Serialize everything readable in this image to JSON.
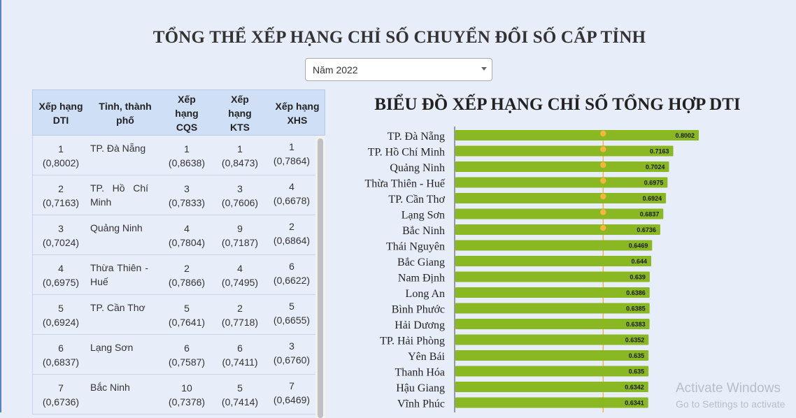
{
  "page": {
    "title": "TỔNG THỂ XẾP HẠNG CHỈ SỐ CHUYỂN ĐỔI SỐ CẤP TỈNH"
  },
  "year_select": {
    "value": "Năm 2022"
  },
  "table": {
    "headers": [
      "Xếp hạng DTI",
      "Tỉnh, thành phố",
      "Xếp hạng CQS",
      "Xếp hạng KTS",
      "Xếp hạng XHS"
    ],
    "rows": [
      {
        "dti_rank": "1",
        "dti_score": "(0,8002)",
        "province": "TP. Đà Nẵng",
        "cqs_rank": "1",
        "cqs_score": "(0,8638)",
        "kts_rank": "1",
        "kts_score": "(0,8473)",
        "xhs_rank": "1",
        "xhs_score": "(0,7864)"
      },
      {
        "dti_rank": "2",
        "dti_score": "(0,7163)",
        "province": "TP. Hồ Chí Minh",
        "cqs_rank": "3",
        "cqs_score": "(0,7833)",
        "kts_rank": "3",
        "kts_score": "(0,7606)",
        "xhs_rank": "4",
        "xhs_score": "(0,6678)"
      },
      {
        "dti_rank": "3",
        "dti_score": "(0,7024)",
        "province": "Quảng Ninh",
        "cqs_rank": "4",
        "cqs_score": "(0,7804)",
        "kts_rank": "9",
        "kts_score": "(0,7187)",
        "xhs_rank": "2",
        "xhs_score": "(0,6864)"
      },
      {
        "dti_rank": "4",
        "dti_score": "(0,6975)",
        "province": "Thừa Thiên - Huế",
        "cqs_rank": "2",
        "cqs_score": "(0,7866)",
        "kts_rank": "4",
        "kts_score": "(0,7495)",
        "xhs_rank": "6",
        "xhs_score": "(0,6622)"
      },
      {
        "dti_rank": "5",
        "dti_score": "(0,6924)",
        "province": "TP. Cần Thơ",
        "cqs_rank": "5",
        "cqs_score": "(0,7641)",
        "kts_rank": "2",
        "kts_score": "(0,7718)",
        "xhs_rank": "5",
        "xhs_score": "(0,6655)"
      },
      {
        "dti_rank": "6",
        "dti_score": "(0,6837)",
        "province": "Lạng Sơn",
        "cqs_rank": "6",
        "cqs_score": "(0,7587)",
        "kts_rank": "6",
        "kts_score": "(0,7411)",
        "xhs_rank": "3",
        "xhs_score": "(0,6760)"
      },
      {
        "dti_rank": "7",
        "dti_score": "(0,6736)",
        "province": "Bắc Ninh",
        "cqs_rank": "10",
        "cqs_score": "(0,7378)",
        "kts_rank": "5",
        "kts_score": "(0,7414)",
        "xhs_rank": "7",
        "xhs_score": "(0,6469)"
      }
    ]
  },
  "chart_data": {
    "type": "bar",
    "orientation": "horizontal",
    "title": "BIỂU ĐỒ XẾP HẠNG CHỈ SỐ TỔNG HỢP DTI",
    "xlabel": "",
    "ylabel": "",
    "xlim": [
      0,
      0.8002
    ],
    "grid": false,
    "bar_color": "#8ab822",
    "marker_color": "#f5b53f",
    "categories": [
      "TP. Đà Nẵng",
      "TP. Hồ Chí Minh",
      "Quảng Ninh",
      "Thừa Thiên - Huế",
      "TP. Cần Thơ",
      "Lạng Sơn",
      "Bắc Ninh",
      "Thái Nguyên",
      "Bắc Giang",
      "Nam Định",
      "Long An",
      "Bình Phước",
      "Hải Dương",
      "TP. Hải Phòng",
      "Yên Bái",
      "Thanh Hóa",
      "Hậu Giang",
      "Vĩnh Phúc"
    ],
    "values": [
      0.8002,
      0.7163,
      0.7024,
      0.6975,
      0.6924,
      0.6837,
      0.6736,
      0.6469,
      0.644,
      0.639,
      0.6386,
      0.6385,
      0.6383,
      0.6352,
      0.635,
      0.635,
      0.6342,
      0.6341
    ],
    "value_labels": [
      "0.8002",
      "0.7163",
      "0.7024",
      "0.6975",
      "0.6924",
      "0.6837",
      "0.6736",
      "0.6469",
      "0.644",
      "0.639",
      "0.6386",
      "0.6385",
      "0.6383",
      "0.6352",
      "0.635",
      "0.635",
      "0.6342",
      "0.6341"
    ]
  },
  "watermark": {
    "line1": "Activate Windows",
    "line2": "Go to Settings to activate"
  }
}
